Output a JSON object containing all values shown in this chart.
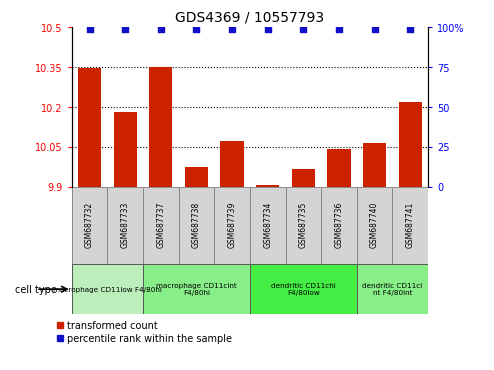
{
  "title": "GDS4369 / 10557793",
  "samples": [
    "GSM687732",
    "GSM687733",
    "GSM687737",
    "GSM687738",
    "GSM687739",
    "GSM687734",
    "GSM687735",
    "GSM687736",
    "GSM687740",
    "GSM687741"
  ],
  "transformed_counts": [
    10.345,
    10.18,
    10.352,
    9.975,
    10.07,
    9.905,
    9.965,
    10.04,
    10.065,
    10.22
  ],
  "percentile_ranks": [
    99,
    99,
    99,
    99,
    99,
    99,
    99,
    99,
    99,
    99
  ],
  "ylim_left": [
    9.9,
    10.5
  ],
  "ylim_right": [
    0,
    100
  ],
  "yticks_left": [
    9.9,
    10.05,
    10.2,
    10.35,
    10.5
  ],
  "yticks_right": [
    0,
    25,
    50,
    75,
    100
  ],
  "ytick_labels_left": [
    "9.9",
    "10.05",
    "10.2",
    "10.35",
    "10.5"
  ],
  "ytick_labels_right": [
    "0",
    "25",
    "50",
    "75",
    "100%"
  ],
  "bar_color": "#cc2200",
  "dot_color": "#1111cc",
  "cell_groups": [
    {
      "label": "macrophage CD11low F4/80hi",
      "start": 0,
      "end": 2,
      "color": "#bbeebb"
    },
    {
      "label": "macrophage CD11cint\nF4/80hi",
      "start": 2,
      "end": 5,
      "color": "#88ee88"
    },
    {
      "label": "dendritic CD11chi\nF4/80low",
      "start": 5,
      "end": 8,
      "color": "#44ee44"
    },
    {
      "label": "dendritic CD11ci\nnt F4/80int",
      "start": 8,
      "end": 10,
      "color": "#88ee88"
    }
  ],
  "legend_bar_label": "transformed count",
  "legend_dot_label": "percentile rank within the sample",
  "cell_type_label": "cell type",
  "dotted_grid_values": [
    10.05,
    10.2,
    10.35
  ],
  "bar_width": 0.65,
  "sample_box_color": "#d4d4d4",
  "sample_box_edge": "#888888"
}
